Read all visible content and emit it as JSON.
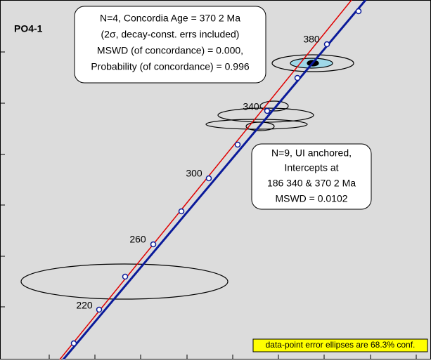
{
  "title": "PO4-1",
  "concordia_box": {
    "lines": [
      "N=4, Concordia Age = 370   2 Ma",
      "(2σ,  decay-const. errs included)",
      "MSWD (of concordance) = 0.000,",
      "Probability (of concordance) = 0.996"
    ]
  },
  "intercept_box": {
    "lines": [
      "N=9, UI anchored,",
      "Intercepts at",
      "186   340 & 370   2 Ma",
      "MSWD = 0.0102"
    ]
  },
  "age_labels": [
    220,
    260,
    300,
    340,
    380
  ],
  "note": "data-point error ellipses are 68.3% conf."
}
